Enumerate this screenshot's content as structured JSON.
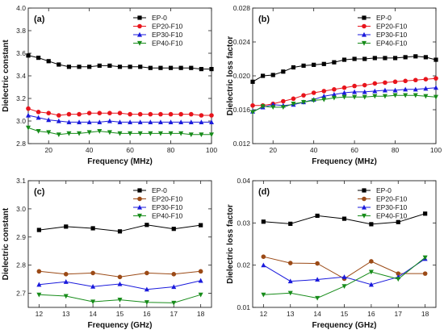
{
  "chart_data": [
    {
      "panel": "(a)",
      "type": "line",
      "xlabel": "Frequency (MHz)",
      "ylabel": "Dielectric constant",
      "xlim": [
        10,
        100
      ],
      "ylim": [
        2.8,
        4.0
      ],
      "xticks": [
        20,
        40,
        60,
        80,
        100
      ],
      "yticks": [
        2.8,
        3.0,
        3.2,
        3.4,
        3.6,
        3.8,
        4.0
      ],
      "ydecimals": 1,
      "legend": "top-right",
      "x": [
        10,
        15,
        20,
        25,
        30,
        35,
        40,
        45,
        50,
        55,
        60,
        65,
        70,
        75,
        80,
        85,
        90,
        95,
        100
      ],
      "series": [
        {
          "name": "EP-0",
          "color": "#000000",
          "marker": "square",
          "values": [
            3.58,
            3.56,
            3.53,
            3.5,
            3.48,
            3.48,
            3.48,
            3.49,
            3.49,
            3.48,
            3.48,
            3.48,
            3.47,
            3.47,
            3.47,
            3.47,
            3.47,
            3.46,
            3.46
          ]
        },
        {
          "name": "EP20-F10",
          "color": "#e8141c",
          "marker": "circle",
          "values": [
            3.11,
            3.08,
            3.07,
            3.05,
            3.06,
            3.06,
            3.07,
            3.07,
            3.07,
            3.07,
            3.06,
            3.06,
            3.06,
            3.06,
            3.06,
            3.06,
            3.06,
            3.05,
            3.05
          ]
        },
        {
          "name": "EP30-F10",
          "color": "#1a1adc",
          "marker": "triangle-up",
          "values": [
            3.05,
            3.03,
            3.01,
            3.0,
            2.99,
            2.99,
            2.99,
            2.99,
            3.0,
            2.99,
            2.99,
            2.99,
            2.99,
            2.99,
            2.99,
            2.99,
            2.99,
            2.99,
            2.99
          ]
        },
        {
          "name": "EP40-F10",
          "color": "#178c1a",
          "marker": "triangle-down",
          "values": [
            2.94,
            2.91,
            2.9,
            2.88,
            2.89,
            2.89,
            2.9,
            2.91,
            2.9,
            2.89,
            2.89,
            2.89,
            2.89,
            2.89,
            2.89,
            2.89,
            2.88,
            2.88,
            2.88
          ]
        }
      ]
    },
    {
      "panel": "(b)",
      "type": "line",
      "xlabel": "Frequency (MHz)",
      "ylabel": "Dielectric loss factor",
      "xlim": [
        10,
        100
      ],
      "ylim": [
        0.012,
        0.028
      ],
      "xticks": [
        20,
        40,
        60,
        80,
        100
      ],
      "yticks": [
        0.012,
        0.016,
        0.02,
        0.024,
        0.028
      ],
      "ydecimals": 3,
      "legend": "top-right",
      "x": [
        10,
        15,
        20,
        25,
        30,
        35,
        40,
        45,
        50,
        55,
        60,
        65,
        70,
        75,
        80,
        85,
        90,
        95,
        100
      ],
      "series": [
        {
          "name": "EP-0",
          "color": "#000000",
          "marker": "square",
          "values": [
            0.0193,
            0.02,
            0.0201,
            0.0205,
            0.021,
            0.0212,
            0.0213,
            0.0214,
            0.0216,
            0.0219,
            0.022,
            0.022,
            0.0221,
            0.0221,
            0.0221,
            0.0222,
            0.0223,
            0.0222,
            0.0219
          ]
        },
        {
          "name": "EP20-F10",
          "color": "#e8141c",
          "marker": "circle",
          "values": [
            0.0165,
            0.0165,
            0.0167,
            0.017,
            0.0173,
            0.0177,
            0.018,
            0.0182,
            0.0184,
            0.0186,
            0.0188,
            0.0189,
            0.0191,
            0.0192,
            0.0193,
            0.0194,
            0.0195,
            0.0196,
            0.0197
          ]
        },
        {
          "name": "EP30-F10",
          "color": "#1a1adc",
          "marker": "triangle-up",
          "values": [
            0.0158,
            0.0163,
            0.0166,
            0.0165,
            0.0166,
            0.0169,
            0.0172,
            0.0176,
            0.0178,
            0.018,
            0.0181,
            0.0181,
            0.0182,
            0.0183,
            0.0183,
            0.0184,
            0.0184,
            0.0185,
            0.0186
          ]
        },
        {
          "name": "EP40-F10",
          "color": "#178c1a",
          "marker": "triangle-down",
          "values": [
            0.0157,
            0.0164,
            0.0163,
            0.0163,
            0.0167,
            0.0169,
            0.0171,
            0.0172,
            0.0174,
            0.0175,
            0.0175,
            0.0175,
            0.0176,
            0.0176,
            0.0177,
            0.0177,
            0.0177,
            0.0176,
            0.0175
          ]
        }
      ]
    },
    {
      "panel": "(c)",
      "type": "line",
      "xlabel": "Frequency (GHz)",
      "ylabel": "Dielectric constant",
      "xlim": [
        11.6,
        18.4
      ],
      "ylim": [
        2.65,
        3.1
      ],
      "xticks": [
        12,
        13,
        14,
        15,
        16,
        17,
        18
      ],
      "yticks": [
        2.7,
        2.8,
        2.9,
        3.0,
        3.1
      ],
      "ydecimals": 1,
      "legend": "top-right",
      "x": [
        12,
        13,
        14,
        15,
        16,
        17,
        18
      ],
      "series": [
        {
          "name": "EP-0",
          "color": "#000000",
          "marker": "square",
          "values": [
            2.925,
            2.937,
            2.931,
            2.92,
            2.943,
            2.929,
            2.942
          ]
        },
        {
          "name": "EP20-F10",
          "color": "#9b4a16",
          "marker": "circle",
          "values": [
            2.778,
            2.768,
            2.772,
            2.758,
            2.772,
            2.768,
            2.778
          ]
        },
        {
          "name": "EP30-F10",
          "color": "#1a1adc",
          "marker": "triangle-up",
          "values": [
            2.731,
            2.741,
            2.724,
            2.733,
            2.714,
            2.723,
            2.745
          ]
        },
        {
          "name": "EP40-F10",
          "color": "#178c1a",
          "marker": "triangle-down",
          "values": [
            2.695,
            2.69,
            2.67,
            2.677,
            2.668,
            2.666,
            2.695
          ]
        }
      ]
    },
    {
      "panel": "(d)",
      "type": "line",
      "xlabel": "Frequency (GHz)",
      "ylabel": "Dielectric loss factor",
      "xlim": [
        11.6,
        18.4
      ],
      "ylim": [
        0.01,
        0.04
      ],
      "xticks": [
        12,
        13,
        14,
        15,
        16,
        17,
        18
      ],
      "yticks": [
        0.01,
        0.02,
        0.03,
        0.04
      ],
      "ydecimals": 2,
      "legend": "top-right",
      "x": [
        12,
        13,
        14,
        15,
        16,
        17,
        18
      ],
      "series": [
        {
          "name": "EP-0",
          "color": "#000000",
          "marker": "square",
          "values": [
            0.0303,
            0.0298,
            0.0317,
            0.031,
            0.0297,
            0.0302,
            0.0322
          ]
        },
        {
          "name": "EP20-F10",
          "color": "#9b4a16",
          "marker": "circle",
          "values": [
            0.022,
            0.0205,
            0.0204,
            0.0168,
            0.0209,
            0.018,
            0.018
          ]
        },
        {
          "name": "EP30-F10",
          "color": "#1a1adc",
          "marker": "triangle-up",
          "values": [
            0.02,
            0.0162,
            0.0166,
            0.0172,
            0.0154,
            0.0172,
            0.0215
          ]
        },
        {
          "name": "EP40-F10",
          "color": "#178c1a",
          "marker": "triangle-down",
          "values": [
            0.013,
            0.0134,
            0.0122,
            0.015,
            0.0184,
            0.0167,
            0.0218
          ]
        }
      ]
    }
  ]
}
